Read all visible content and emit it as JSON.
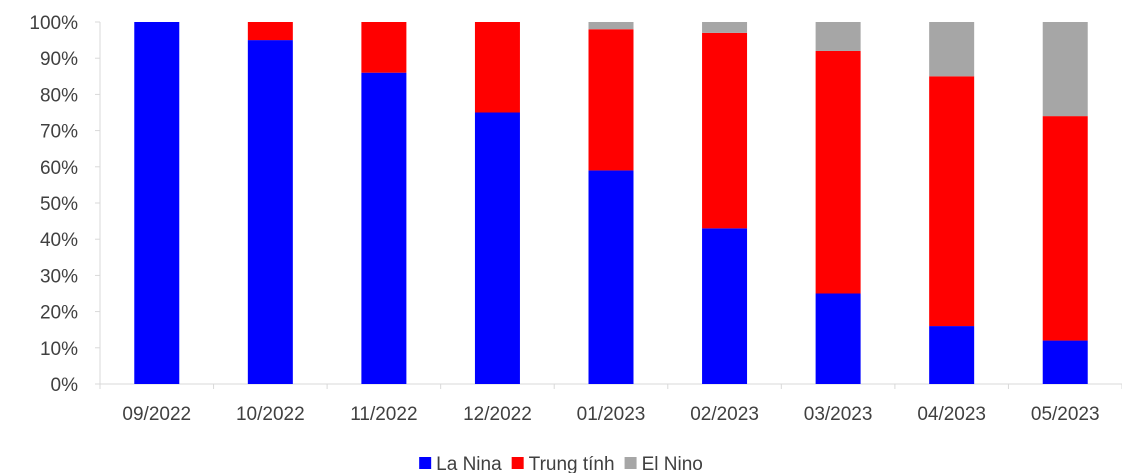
{
  "chart_data": {
    "type": "bar",
    "stacked": true,
    "categories": [
      "09/2022",
      "10/2022",
      "11/2022",
      "12/2022",
      "01/2023",
      "02/2023",
      "03/2023",
      "04/2023",
      "05/2023"
    ],
    "series": [
      {
        "name": "La Nina",
        "color": "#0000ff",
        "values": [
          100,
          95,
          86,
          75,
          59,
          43,
          25,
          16,
          12
        ]
      },
      {
        "name": "Trung tính",
        "color": "#ff0000",
        "values": [
          0,
          5,
          14,
          25,
          39,
          54,
          67,
          69,
          62
        ]
      },
      {
        "name": "El Nino",
        "color": "#a6a6a6",
        "values": [
          0,
          0,
          0,
          0,
          2,
          3,
          8,
          15,
          26
        ]
      }
    ],
    "yticks": [
      "0%",
      "10%",
      "20%",
      "30%",
      "40%",
      "50%",
      "60%",
      "70%",
      "80%",
      "90%",
      "100%"
    ],
    "ylim": [
      0,
      100
    ],
    "grid": false,
    "legend_position": "bottom-center"
  }
}
